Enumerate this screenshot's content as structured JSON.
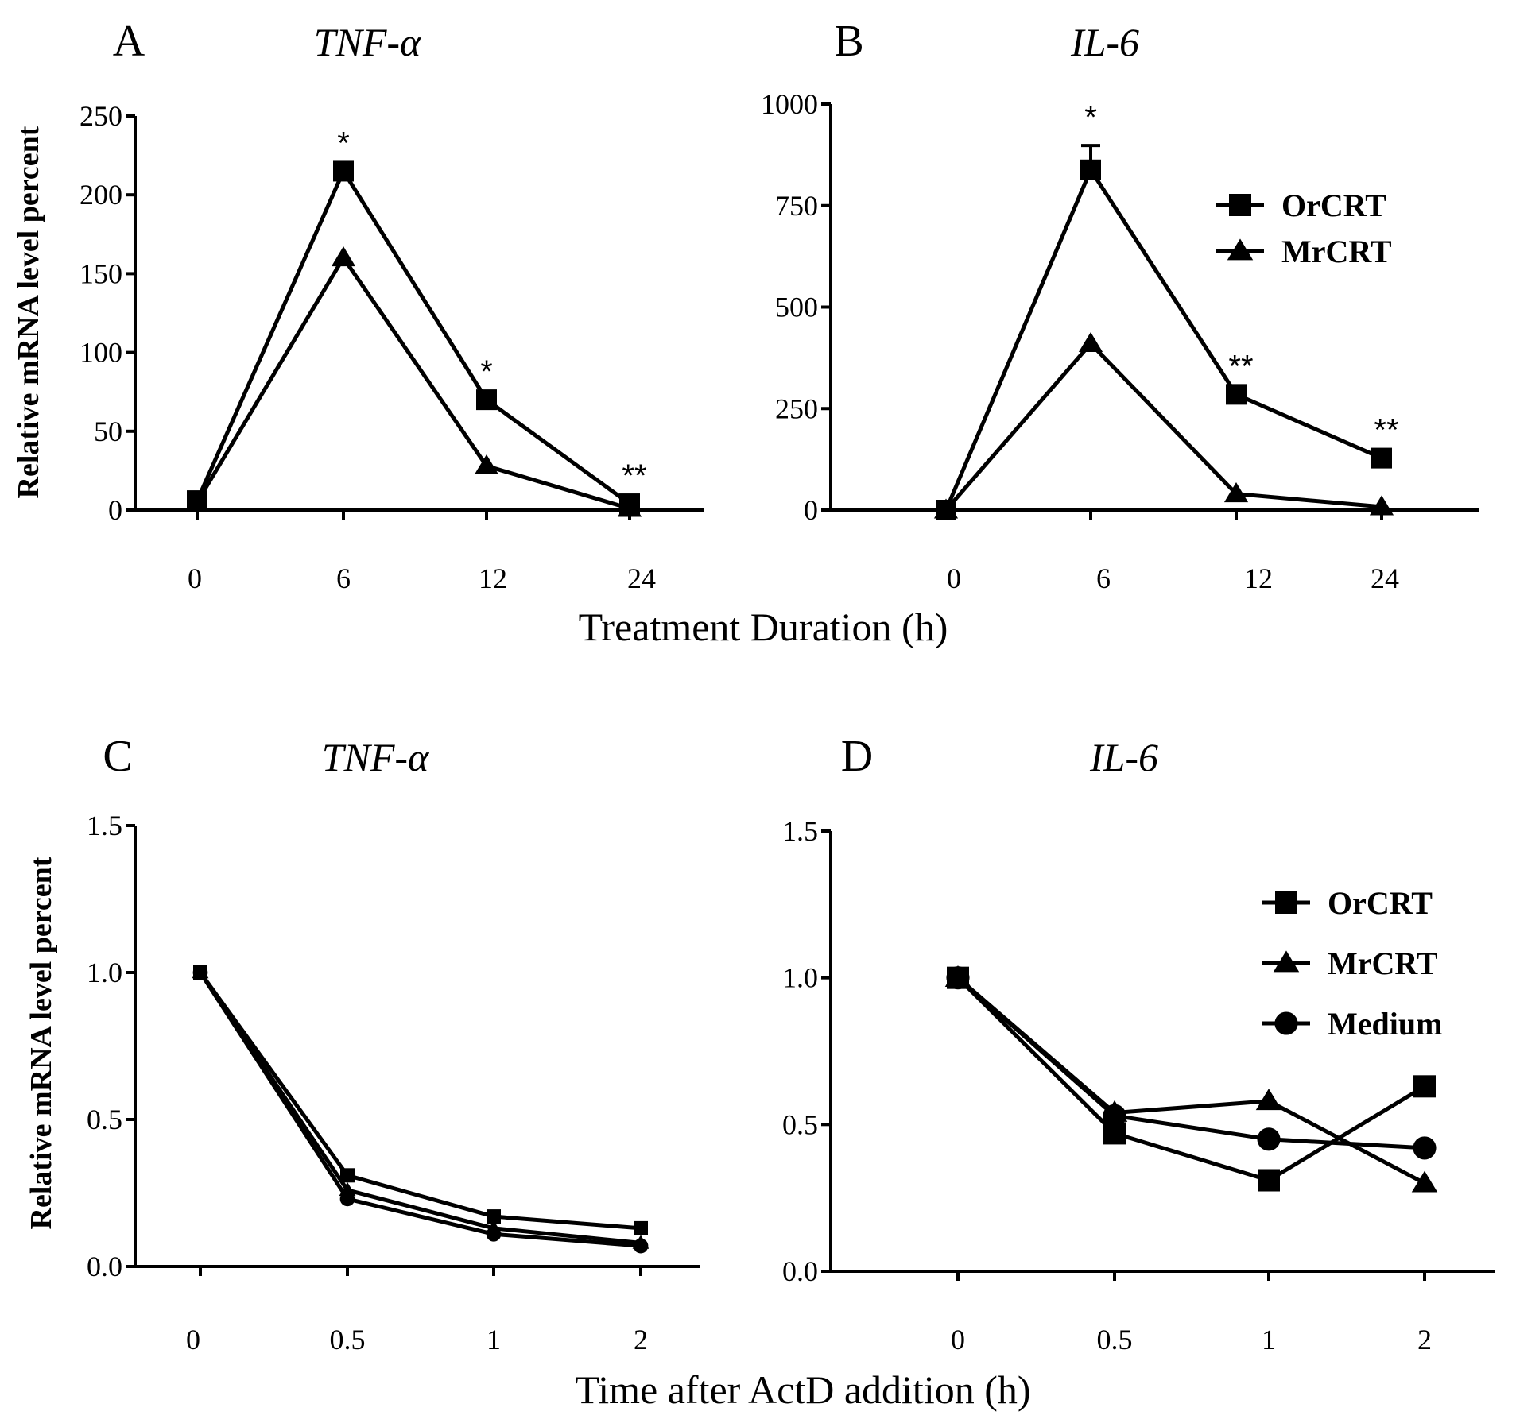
{
  "figure": {
    "shared_xlabel_top": "Treatment Duration (h)",
    "shared_xlabel_bottom": "Time after ActD  addition (h)"
  },
  "chart_data": [
    {
      "panel_letter": "A",
      "title": "TNF-α",
      "type": "line",
      "ylabel": "Relative  mRNA level percent",
      "xlabel": "Treatment Duration (h)",
      "categories": [
        "0",
        "6",
        "12",
        "24"
      ],
      "ylim": [
        0,
        250
      ],
      "yticks": [
        0,
        50,
        100,
        150,
        200,
        250
      ],
      "ytick_labels": [
        "0",
        "50",
        "100",
        "150",
        "200",
        "250"
      ],
      "series": [
        {
          "name": "OrCRT",
          "marker": "square",
          "values": [
            6,
            215,
            70,
            4
          ]
        },
        {
          "name": "MrCRT",
          "marker": "triangle",
          "values": [
            5,
            160,
            28,
            1
          ]
        }
      ],
      "annotations": [
        {
          "category": "6",
          "text": "*"
        },
        {
          "category": "12",
          "text": "*"
        },
        {
          "category": "24",
          "text": "**"
        }
      ]
    },
    {
      "panel_letter": "B",
      "title": "IL-6",
      "type": "line",
      "ylabel": "",
      "xlabel": "Treatment Duration (h)",
      "categories": [
        "0",
        "6",
        "12",
        "24"
      ],
      "ylim": [
        0,
        1000
      ],
      "yticks": [
        0,
        250,
        500,
        750,
        1000
      ],
      "ytick_labels": [
        "0",
        "250",
        "500",
        "750",
        "1000"
      ],
      "legend": {
        "position": "top-right",
        "entries": [
          "OrCRT",
          "MrCRT"
        ]
      },
      "series": [
        {
          "name": "OrCRT",
          "marker": "square",
          "values": [
            0,
            838,
            285,
            128
          ],
          "error": [
            0,
            60,
            0,
            0
          ]
        },
        {
          "name": "MrCRT",
          "marker": "triangle",
          "values": [
            0,
            410,
            40,
            8
          ]
        }
      ],
      "annotations": [
        {
          "category": "6",
          "text": "*"
        },
        {
          "category": "12",
          "text": "**"
        },
        {
          "category": "24",
          "text": "**"
        }
      ]
    },
    {
      "panel_letter": "C",
      "title": "TNF-α",
      "type": "line",
      "ylabel": "Relative mRNA level percent",
      "xlabel": "Time after ActD  addition (h)",
      "categories": [
        "0",
        "0.5",
        "1",
        "2"
      ],
      "ylim": [
        0,
        1.5
      ],
      "yticks": [
        0,
        0.5,
        1.0,
        1.5
      ],
      "ytick_labels": [
        "0.0",
        "0.5",
        "1.0",
        "1.5"
      ],
      "series": [
        {
          "name": "OrCRT",
          "marker": "square",
          "values": [
            1.0,
            0.31,
            0.17,
            0.13
          ]
        },
        {
          "name": "MrCRT",
          "marker": "triangle",
          "values": [
            1.0,
            0.26,
            0.13,
            0.08
          ]
        },
        {
          "name": "Medium",
          "marker": "circle",
          "values": [
            1.0,
            0.23,
            0.11,
            0.07
          ]
        }
      ]
    },
    {
      "panel_letter": "D",
      "title": "IL-6",
      "type": "line",
      "ylabel": "",
      "xlabel": "Time after ActD  addition (h)",
      "categories": [
        "0",
        "0.5",
        "1",
        "2"
      ],
      "ylim": [
        0,
        1.5
      ],
      "yticks": [
        0,
        0.5,
        1.0,
        1.5
      ],
      "ytick_labels": [
        "0.0",
        "0.5",
        "1.0",
        "1.5"
      ],
      "legend": {
        "position": "top-right",
        "entries": [
          "OrCRT",
          "MrCRT",
          "Medium"
        ]
      },
      "series": [
        {
          "name": "OrCRT",
          "marker": "square",
          "values": [
            1.0,
            0.47,
            0.31,
            0.63
          ]
        },
        {
          "name": "MrCRT",
          "marker": "triangle",
          "values": [
            1.0,
            0.54,
            0.58,
            0.3
          ]
        },
        {
          "name": "Medium",
          "marker": "circle",
          "values": [
            1.0,
            0.53,
            0.45,
            0.42
          ]
        }
      ]
    }
  ]
}
